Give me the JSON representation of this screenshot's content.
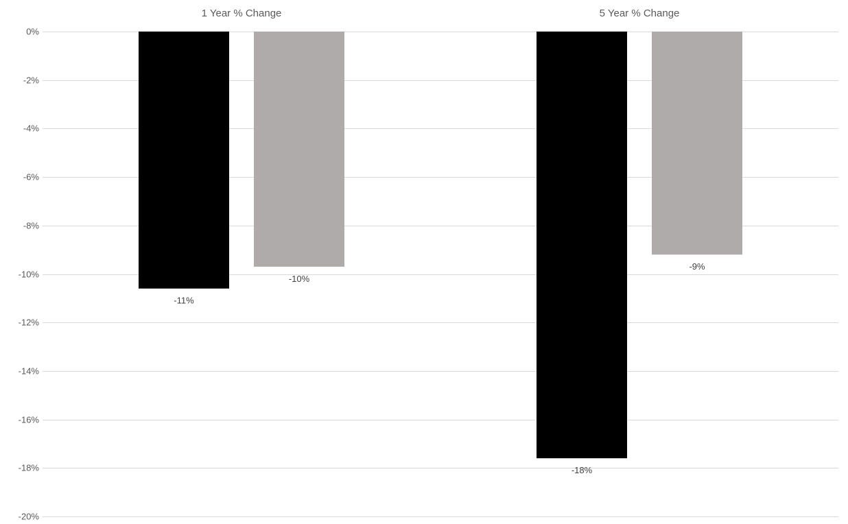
{
  "chart_data": {
    "type": "bar",
    "categories": [
      "1 Year % Change",
      "5 Year % Change"
    ],
    "series": [
      {
        "values": [
          -10.6,
          -17.6
        ],
        "color": "#000000",
        "data_labels": [
          "-11%",
          "-18%"
        ]
      },
      {
        "values": [
          -9.7,
          -9.2
        ],
        "color": "#afabaa",
        "data_labels": [
          "-10%",
          "-9%"
        ]
      }
    ],
    "ylim": [
      -20,
      0
    ],
    "yticks": [
      0,
      -2,
      -4,
      -6,
      -8,
      -10,
      -12,
      -14,
      -16,
      -18,
      -20
    ],
    "ytick_labels": [
      "0%",
      "-2%",
      "-4%",
      "-6%",
      "-8%",
      "-10%",
      "-12%",
      "-14%",
      "-16%",
      "-18%",
      "-20%"
    ],
    "category_axis_position": "top",
    "grid": true,
    "legend": "none",
    "title": "",
    "xlabel": "",
    "ylabel": ""
  }
}
